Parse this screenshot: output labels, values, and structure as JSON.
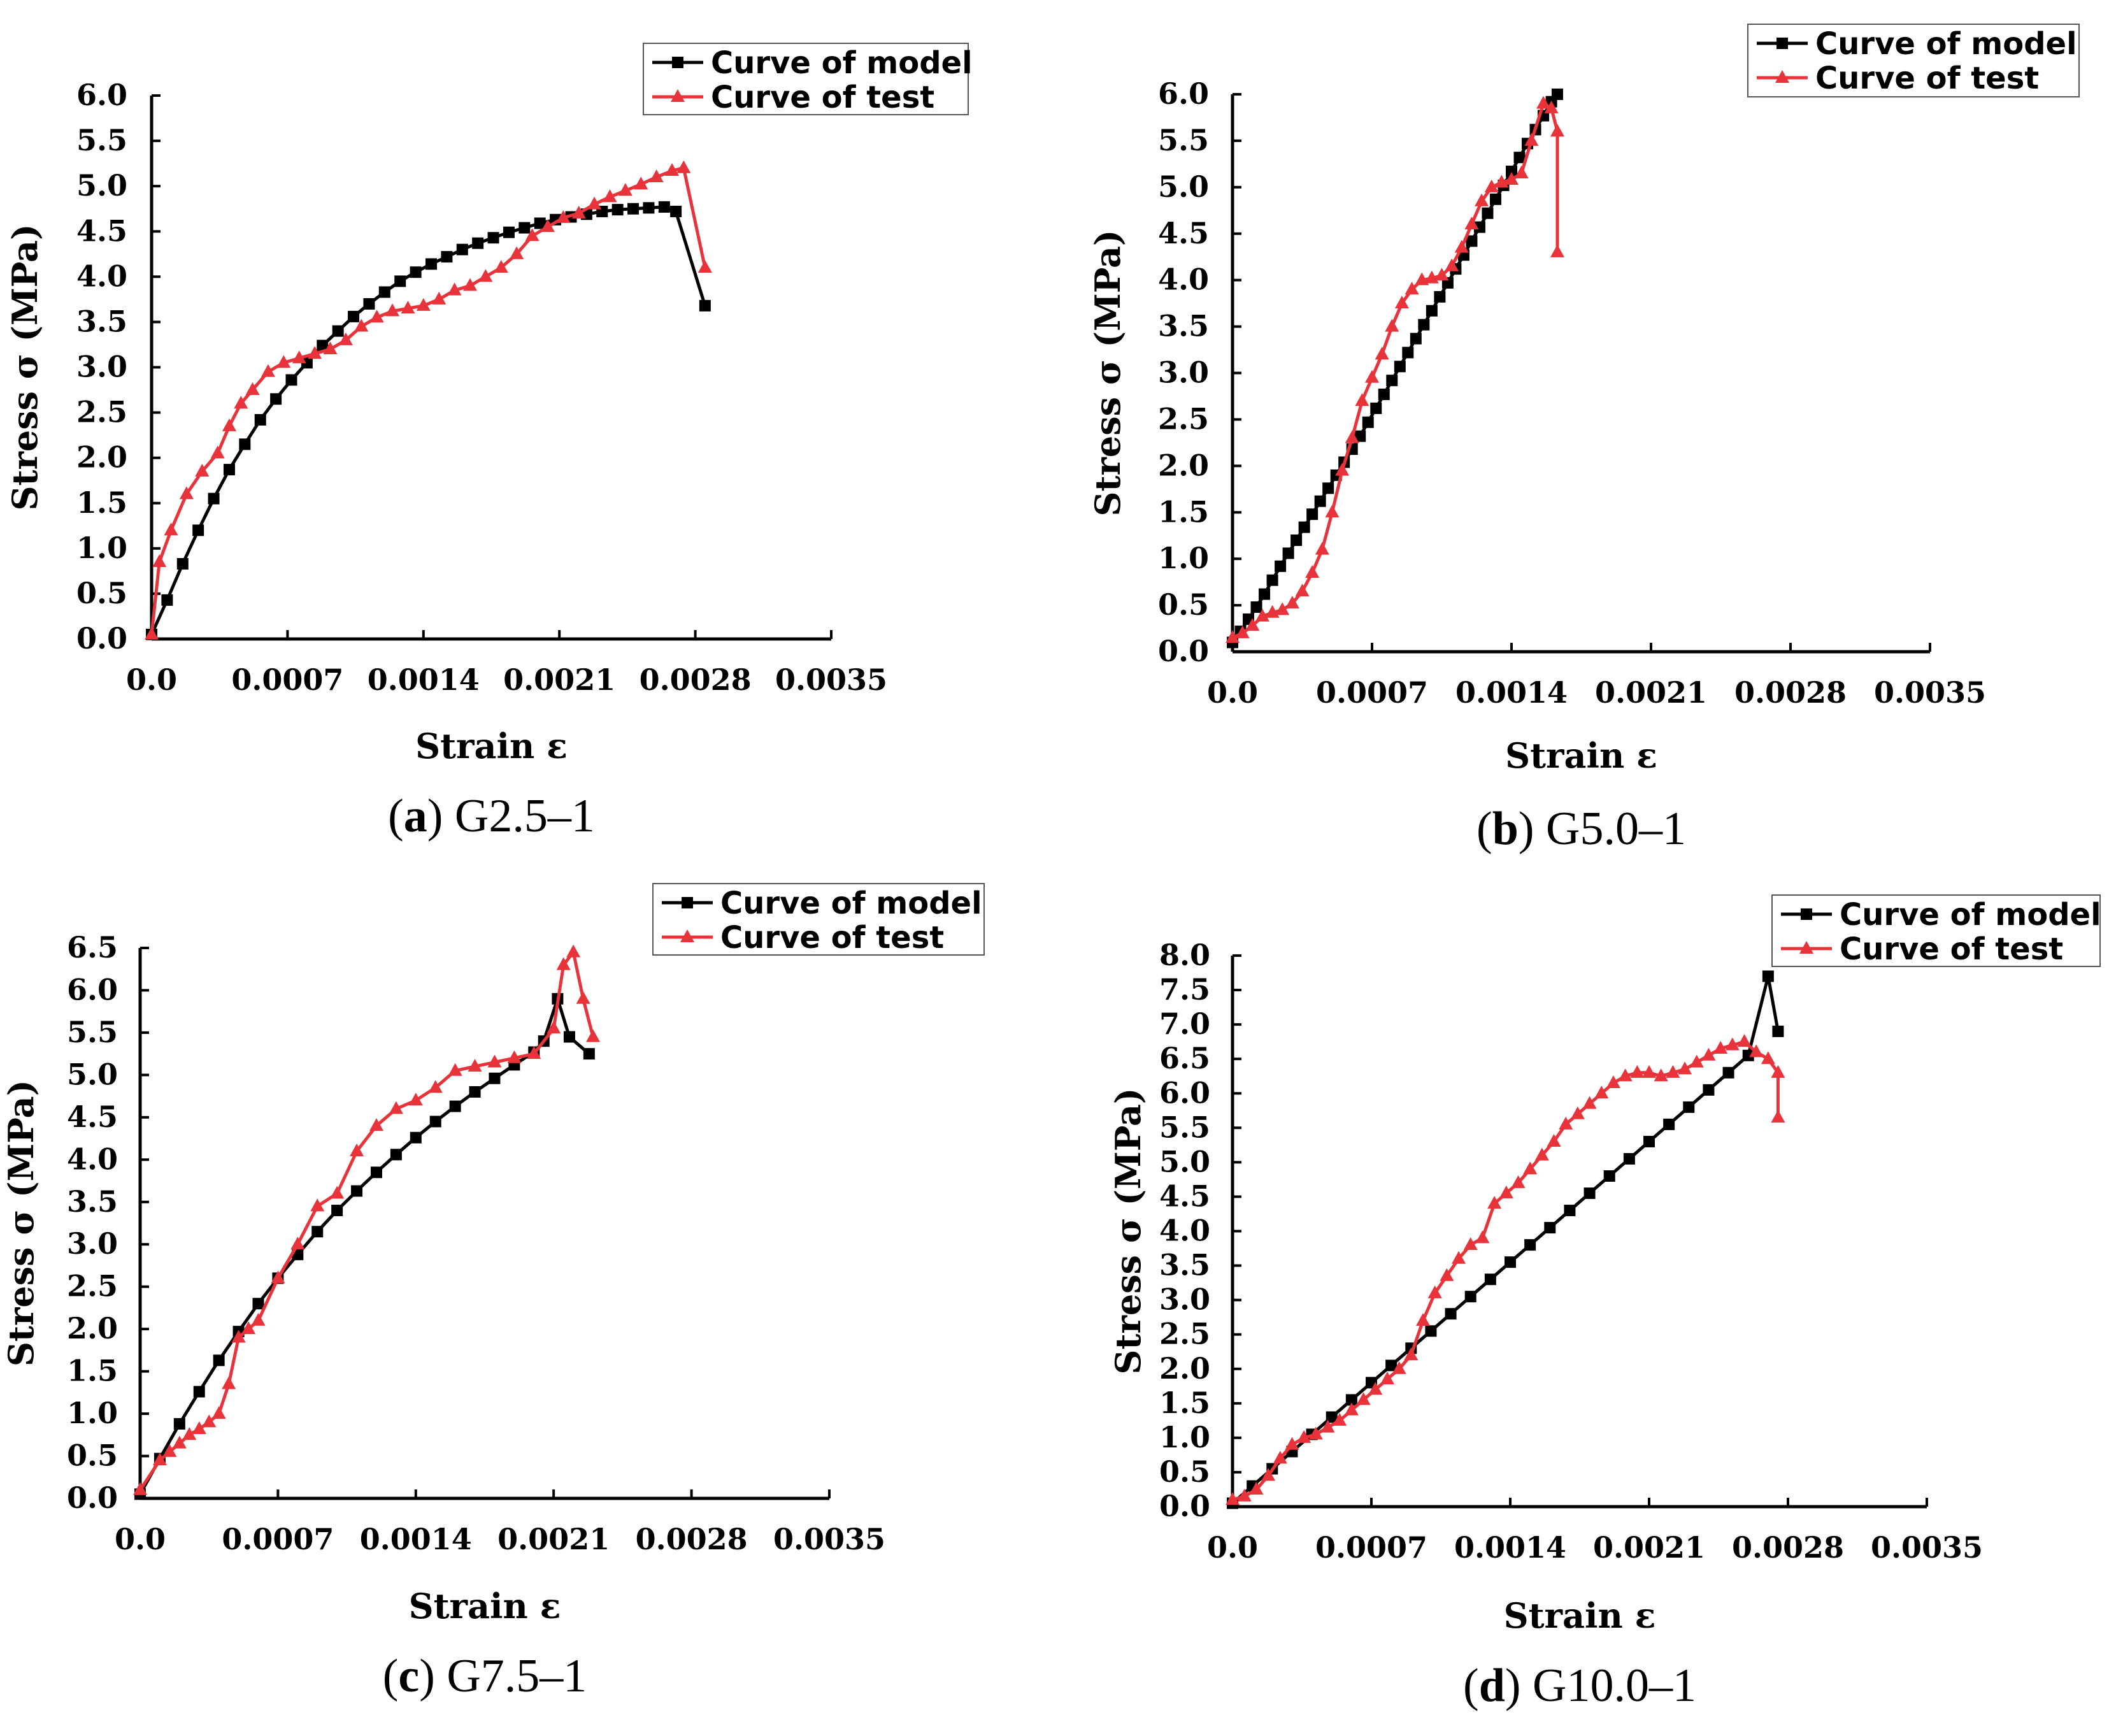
{
  "chart_data": [
    {
      "type": "line",
      "panel": "a",
      "caption_letter": "a",
      "caption_text": "G2.5–1",
      "xlabel": "Strain ε",
      "ylabel": "Stress σ (MPa)",
      "xlim": [
        0,
        0.0035
      ],
      "ylim": [
        0,
        6.0
      ],
      "x_ticks": [
        "0.0",
        "0.0007",
        "0.0014",
        "0.0021",
        "0.0028",
        "0.0035"
      ],
      "y_ticks": [
        "0.0",
        "0.5",
        "1.0",
        "1.5",
        "2.0",
        "2.5",
        "3.0",
        "3.5",
        "4.0",
        "4.5",
        "5.0",
        "5.5",
        "6.0"
      ],
      "legend": [
        "Curve of model",
        "Curve of test"
      ],
      "series": [
        {
          "name": "Curve of model",
          "color": "#000000",
          "marker": "square",
          "x": [
            0,
            8e-05,
            0.00016,
            0.00024,
            0.00032,
            0.0004,
            0.00048,
            0.00056,
            0.00064,
            0.00072,
            0.0008,
            0.00088,
            0.00096,
            0.00104,
            0.00112,
            0.0012,
            0.00128,
            0.00136,
            0.00144,
            0.00152,
            0.0016,
            0.00168,
            0.00176,
            0.00184,
            0.00192,
            0.002,
            0.00208,
            0.00216,
            0.00224,
            0.00232,
            0.0024,
            0.00248,
            0.00256,
            0.00264,
            0.0027,
            0.00285
          ],
          "y": [
            0.05,
            0.43,
            0.83,
            1.2,
            1.55,
            1.87,
            2.15,
            2.42,
            2.65,
            2.86,
            3.05,
            3.24,
            3.4,
            3.56,
            3.7,
            3.83,
            3.95,
            4.05,
            4.14,
            4.22,
            4.3,
            4.37,
            4.43,
            4.49,
            4.54,
            4.59,
            4.63,
            4.66,
            4.69,
            4.72,
            4.74,
            4.75,
            4.76,
            4.77,
            4.72,
            3.68
          ]
        },
        {
          "name": "Curve of test",
          "color": "#e8333a",
          "marker": "triangle",
          "x": [
            0,
            4e-05,
            0.0001,
            0.00018,
            0.00026,
            0.00034,
            0.0004,
            0.00046,
            0.00052,
            0.0006,
            0.00068,
            0.00076,
            0.00084,
            0.00092,
            0.001,
            0.00108,
            0.00116,
            0.00124,
            0.00132,
            0.0014,
            0.00148,
            0.00156,
            0.00164,
            0.00172,
            0.0018,
            0.00188,
            0.00196,
            0.00204,
            0.00212,
            0.0022,
            0.00228,
            0.00236,
            0.00244,
            0.00252,
            0.0026,
            0.00268,
            0.00274,
            0.00285
          ],
          "y": [
            0.05,
            0.85,
            1.2,
            1.6,
            1.85,
            2.05,
            2.35,
            2.6,
            2.75,
            2.95,
            3.05,
            3.1,
            3.15,
            3.2,
            3.3,
            3.45,
            3.55,
            3.62,
            3.65,
            3.68,
            3.75,
            3.85,
            3.9,
            4.0,
            4.1,
            4.25,
            4.45,
            4.55,
            4.65,
            4.7,
            4.8,
            4.88,
            4.95,
            5.02,
            5.1,
            5.17,
            5.2,
            4.1
          ]
        }
      ]
    },
    {
      "type": "line",
      "panel": "b",
      "caption_letter": "b",
      "caption_text": "G5.0–1",
      "xlabel": "Strain ε",
      "ylabel": "Stress σ (MPa)",
      "xlim": [
        0,
        0.0035
      ],
      "ylim": [
        0,
        6.0
      ],
      "x_ticks": [
        "0.0",
        "0.0007",
        "0.0014",
        "0.0021",
        "0.0028",
        "0.0035"
      ],
      "y_ticks": [
        "0.0",
        "0.5",
        "1.0",
        "1.5",
        "2.0",
        "2.5",
        "3.0",
        "3.5",
        "4.0",
        "4.5",
        "5.0",
        "5.5",
        "6.0"
      ],
      "legend": [
        "Curve of model",
        "Curve of test"
      ],
      "series": [
        {
          "name": "Curve of model",
          "color": "#000000",
          "marker": "square",
          "x": [
            0,
            4e-05,
            8e-05,
            0.00012,
            0.00016,
            0.0002,
            0.00024,
            0.00028,
            0.00032,
            0.00036,
            0.0004,
            0.00044,
            0.00048,
            0.00052,
            0.00056,
            0.0006,
            0.00064,
            0.00068,
            0.00072,
            0.00076,
            0.0008,
            0.00084,
            0.00088,
            0.00092,
            0.00096,
            0.001,
            0.00104,
            0.00108,
            0.00112,
            0.00116,
            0.0012,
            0.00124,
            0.00128,
            0.00132,
            0.00136,
            0.0014,
            0.00144,
            0.00148,
            0.00152,
            0.00156,
            0.0016,
            0.00163
          ],
          "y": [
            0.1,
            0.22,
            0.35,
            0.48,
            0.62,
            0.77,
            0.92,
            1.06,
            1.2,
            1.34,
            1.48,
            1.62,
            1.76,
            1.9,
            2.04,
            2.18,
            2.32,
            2.47,
            2.62,
            2.77,
            2.92,
            3.07,
            3.22,
            3.37,
            3.52,
            3.67,
            3.82,
            3.97,
            4.12,
            4.27,
            4.42,
            4.57,
            4.72,
            4.87,
            5.02,
            5.17,
            5.32,
            5.47,
            5.62,
            5.77,
            5.92,
            6.0
          ]
        },
        {
          "name": "Curve of test",
          "color": "#e8333a",
          "marker": "triangle",
          "x": [
            0,
            5e-05,
            0.0001,
            0.00015,
            0.0002,
            0.00025,
            0.0003,
            0.00035,
            0.0004,
            0.00045,
            0.0005,
            0.00055,
            0.0006,
            0.00065,
            0.0007,
            0.00075,
            0.0008,
            0.00085,
            0.0009,
            0.00095,
            0.001,
            0.00105,
            0.0011,
            0.00115,
            0.0012,
            0.00125,
            0.0013,
            0.00135,
            0.0014,
            0.00145,
            0.0015,
            0.00156,
            0.0016,
            0.00163,
            0.00163
          ],
          "y": [
            0.15,
            0.2,
            0.28,
            0.38,
            0.42,
            0.45,
            0.52,
            0.65,
            0.85,
            1.1,
            1.5,
            1.95,
            2.3,
            2.7,
            2.95,
            3.2,
            3.5,
            3.75,
            3.9,
            4.0,
            4.02,
            4.05,
            4.15,
            4.35,
            4.6,
            4.85,
            5.0,
            5.05,
            5.08,
            5.15,
            5.5,
            5.9,
            5.85,
            5.6,
            4.3
          ]
        }
      ]
    },
    {
      "type": "line",
      "panel": "c",
      "caption_letter": "c",
      "caption_text": "G7.5–1",
      "xlabel": "Strain ε",
      "ylabel": "Stress σ (MPa)",
      "xlim": [
        0,
        0.0035
      ],
      "ylim": [
        0,
        6.5
      ],
      "x_ticks": [
        "0.0",
        "0.0007",
        "0.0014",
        "0.0021",
        "0.0028",
        "0.0035"
      ],
      "y_ticks": [
        "0.0",
        "0.5",
        "1.0",
        "1.5",
        "2.0",
        "2.5",
        "3.0",
        "3.5",
        "4.0",
        "4.5",
        "5.0",
        "5.5",
        "6.0",
        "6.5"
      ],
      "legend": [
        "Curve of model",
        "Curve of test"
      ],
      "series": [
        {
          "name": "Curve of model",
          "color": "#000000",
          "marker": "square",
          "x": [
            0,
            0.0001,
            0.0002,
            0.0003,
            0.0004,
            0.0005,
            0.0006,
            0.0007,
            0.0008,
            0.0009,
            0.001,
            0.0011,
            0.0012,
            0.0013,
            0.0014,
            0.0015,
            0.0016,
            0.0017,
            0.0018,
            0.0019,
            0.002,
            0.00205,
            0.00212,
            0.00218,
            0.00228
          ],
          "y": [
            0.05,
            0.47,
            0.88,
            1.26,
            1.63,
            1.97,
            2.3,
            2.6,
            2.88,
            3.15,
            3.4,
            3.63,
            3.85,
            4.06,
            4.26,
            4.45,
            4.63,
            4.8,
            4.96,
            5.12,
            5.27,
            5.4,
            5.9,
            5.45,
            5.25
          ]
        },
        {
          "name": "Curve of test",
          "color": "#e8333a",
          "marker": "triangle",
          "x": [
            0,
            0.0001,
            0.00015,
            0.0002,
            0.00025,
            0.0003,
            0.00035,
            0.0004,
            0.00045,
            0.0005,
            0.00055,
            0.0006,
            0.0007,
            0.0008,
            0.0009,
            0.001,
            0.0011,
            0.0012,
            0.0013,
            0.0014,
            0.0015,
            0.0016,
            0.0017,
            0.0018,
            0.0019,
            0.002,
            0.0021,
            0.00215,
            0.0022,
            0.00225,
            0.0023
          ],
          "y": [
            0.1,
            0.45,
            0.55,
            0.65,
            0.75,
            0.82,
            0.9,
            1.0,
            1.35,
            1.9,
            2.0,
            2.1,
            2.6,
            3.0,
            3.45,
            3.6,
            4.1,
            4.4,
            4.6,
            4.7,
            4.85,
            5.05,
            5.1,
            5.15,
            5.2,
            5.25,
            5.55,
            6.3,
            6.45,
            5.9,
            5.45
          ]
        }
      ]
    },
    {
      "type": "line",
      "panel": "d",
      "caption_letter": "d",
      "caption_text": "G10.0–1",
      "xlabel": "Strain ε",
      "ylabel": "Stress σ (MPa)",
      "xlim": [
        0,
        0.0035
      ],
      "ylim": [
        0,
        8.0
      ],
      "x_ticks": [
        "0.0",
        "0.0007",
        "0.0014",
        "0.0021",
        "0.0028",
        "0.0035"
      ],
      "y_ticks": [
        "0.0",
        "0.5",
        "1.0",
        "1.5",
        "2.0",
        "2.5",
        "3.0",
        "3.5",
        "4.0",
        "4.5",
        "5.0",
        "5.5",
        "6.0",
        "6.5",
        "7.0",
        "7.5",
        "8.0"
      ],
      "legend": [
        "Curve of model",
        "Curve of test"
      ],
      "series": [
        {
          "name": "Curve of model",
          "color": "#000000",
          "marker": "square",
          "x": [
            0,
            0.0001,
            0.0002,
            0.0003,
            0.0004,
            0.0005,
            0.0006,
            0.0007,
            0.0008,
            0.0009,
            0.001,
            0.0011,
            0.0012,
            0.0013,
            0.0014,
            0.0015,
            0.0016,
            0.0017,
            0.0018,
            0.0019,
            0.002,
            0.0021,
            0.0022,
            0.0023,
            0.0024,
            0.0025,
            0.0026,
            0.0027,
            0.00275
          ],
          "y": [
            0.05,
            0.3,
            0.55,
            0.8,
            1.05,
            1.3,
            1.55,
            1.8,
            2.05,
            2.3,
            2.55,
            2.8,
            3.05,
            3.3,
            3.55,
            3.8,
            4.05,
            4.3,
            4.55,
            4.8,
            5.05,
            5.3,
            5.55,
            5.8,
            6.05,
            6.3,
            6.55,
            7.7,
            6.9
          ]
        },
        {
          "name": "Curve of test",
          "color": "#e8333a",
          "marker": "triangle",
          "x": [
            0,
            6e-05,
            0.00012,
            0.00018,
            0.00024,
            0.0003,
            0.00036,
            0.00042,
            0.00048,
            0.00054,
            0.0006,
            0.00066,
            0.00072,
            0.00078,
            0.00084,
            0.0009,
            0.00096,
            0.00102,
            0.00108,
            0.00114,
            0.0012,
            0.00126,
            0.00132,
            0.00138,
            0.00144,
            0.0015,
            0.00156,
            0.00162,
            0.00168,
            0.00174,
            0.0018,
            0.00186,
            0.00192,
            0.00198,
            0.00204,
            0.0021,
            0.00216,
            0.00222,
            0.00228,
            0.00234,
            0.0024,
            0.00246,
            0.00252,
            0.00258,
            0.00264,
            0.0027,
            0.00275,
            0.00275
          ],
          "y": [
            0.1,
            0.15,
            0.25,
            0.45,
            0.7,
            0.9,
            1.0,
            1.05,
            1.15,
            1.25,
            1.4,
            1.55,
            1.7,
            1.85,
            2.0,
            2.2,
            2.7,
            3.1,
            3.35,
            3.6,
            3.8,
            3.9,
            4.4,
            4.55,
            4.7,
            4.9,
            5.1,
            5.3,
            5.55,
            5.7,
            5.85,
            6.0,
            6.15,
            6.25,
            6.3,
            6.3,
            6.25,
            6.3,
            6.35,
            6.45,
            6.55,
            6.65,
            6.7,
            6.75,
            6.6,
            6.5,
            6.3,
            5.65
          ]
        }
      ]
    }
  ]
}
